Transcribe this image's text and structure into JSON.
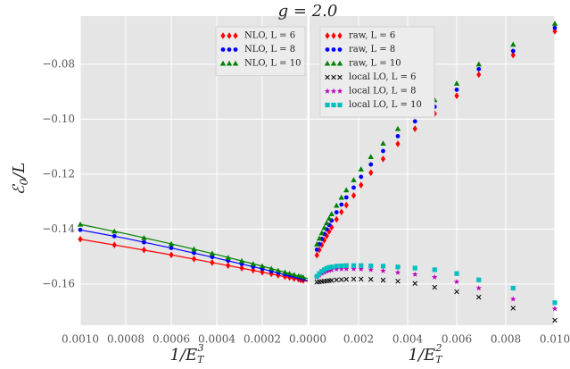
{
  "chart_data": [
    {
      "type": "scatter",
      "title": "g = 2.0",
      "y_label": {
        "base": "ℰ",
        "sub": "0",
        "rest": "/L"
      },
      "x_label": {
        "base": "1/E",
        "sub": "T",
        "sup": "3"
      },
      "xlim": [
        0.001,
        0
      ],
      "ylim": [
        -0.175,
        -0.0625
      ],
      "xticks": [
        {
          "value": 0.001,
          "label": "0.0010"
        },
        {
          "value": 0.0008,
          "label": "0.0008"
        },
        {
          "value": 0.0006,
          "label": "0.0006"
        },
        {
          "value": 0.0004,
          "label": "0.0004"
        },
        {
          "value": 0.0002,
          "label": "0.0002"
        },
        {
          "value": 0,
          "label": "0.0000"
        }
      ],
      "yticks": [
        {
          "value": -0.08,
          "label": "−0.08"
        },
        {
          "value": -0.1,
          "label": "−0.10"
        },
        {
          "value": -0.12,
          "label": "−0.12"
        },
        {
          "value": -0.14,
          "label": "−0.14"
        },
        {
          "value": -0.16,
          "label": "−0.16"
        }
      ],
      "grid": true,
      "legend": "upper right",
      "x": [
        0.001,
        0.00085,
        0.00072,
        0.0006,
        0.0005,
        0.00042,
        0.00035,
        0.00029,
        0.00024,
        0.0002,
        0.00016,
        0.00013,
        0.0001,
        8e-05,
        6e-05,
        4e-05,
        3e-05,
        2e-05
      ],
      "series": [
        {
          "name": "NLO, L = 6",
          "color": "#ff0000",
          "marker": "diamond",
          "values": [
            -0.1437,
            -0.1458,
            -0.1476,
            -0.1494,
            -0.1509,
            -0.1522,
            -0.1533,
            -0.1542,
            -0.155,
            -0.1557,
            -0.1563,
            -0.1568,
            -0.1573,
            -0.1576,
            -0.158,
            -0.1583,
            -0.1585,
            -0.1587
          ]
        },
        {
          "name": "NLO, L = 8",
          "color": "#0000ff",
          "marker": "circle",
          "values": [
            -0.1403,
            -0.1426,
            -0.1448,
            -0.1469,
            -0.1487,
            -0.1502,
            -0.1515,
            -0.1527,
            -0.1537,
            -0.1545,
            -0.1554,
            -0.156,
            -0.1566,
            -0.1571,
            -0.1575,
            -0.1579,
            -0.1581,
            -0.1584
          ]
        },
        {
          "name": "NLO, L = 10",
          "color": "#008000",
          "marker": "triangle",
          "values": [
            -0.1383,
            -0.1408,
            -0.1432,
            -0.1454,
            -0.1473,
            -0.1489,
            -0.1504,
            -0.1516,
            -0.1527,
            -0.1535,
            -0.1544,
            -0.1551,
            -0.1557,
            -0.1562,
            -0.1566,
            -0.1571,
            -0.1573,
            -0.1575
          ]
        },
        {
          "color": "#ff0000",
          "line": true,
          "x": [
            0.001,
            0.0008,
            0.0006,
            0.0004,
            0.0002,
            0
          ],
          "values": [
            -0.1437,
            -0.1465,
            -0.1494,
            -0.1525,
            -0.1557,
            -0.159
          ]
        },
        {
          "color": "#0000ff",
          "line": true,
          "x": [
            0.001,
            0.0008,
            0.0006,
            0.0004,
            0.0002,
            0
          ],
          "values": [
            -0.1403,
            -0.1434,
            -0.1469,
            -0.1506,
            -0.1545,
            -0.1588
          ]
        },
        {
          "color": "#008000",
          "line": true,
          "x": [
            0.001,
            0.0008,
            0.0006,
            0.0004,
            0.0002,
            0
          ],
          "values": [
            -0.1383,
            -0.1417,
            -0.1454,
            -0.1493,
            -0.1535,
            -0.158
          ]
        }
      ]
    },
    {
      "type": "scatter",
      "x_label": {
        "base": "1/E",
        "sub": "T",
        "sup": "2"
      },
      "xlim": [
        0,
        0.01
      ],
      "xticks": [
        0.002,
        0.004,
        0.006,
        0.008,
        {
          "value": 0.01,
          "label": "0.010"
        }
      ],
      "grid": true,
      "legend": "upper left",
      "x": [
        0.0003,
        0.0004,
        0.0005,
        0.0006,
        0.0007,
        0.0008,
        0.0009,
        0.0011,
        0.0013,
        0.0015,
        0.0018,
        0.0021,
        0.0025,
        0.003,
        0.0036,
        0.0043,
        0.0051,
        0.006,
        0.0069,
        0.0083,
        0.01
      ],
      "series": [
        {
          "name": "raw, L = 6",
          "color": "#ff0000",
          "marker": "diamond",
          "values": [
            -0.1495,
            -0.1476,
            -0.1458,
            -0.1441,
            -0.1425,
            -0.1409,
            -0.1394,
            -0.1365,
            -0.1338,
            -0.1313,
            -0.1278,
            -0.124,
            -0.1195,
            -0.1145,
            -0.109,
            -0.1035,
            -0.098,
            -0.0915,
            -0.0838,
            -0.0767,
            -0.068
          ]
        },
        {
          "name": "raw, L = 8",
          "color": "#0000ff",
          "marker": "circle",
          "values": [
            -0.1475,
            -0.1455,
            -0.1436,
            -0.1418,
            -0.1401,
            -0.1385,
            -0.1369,
            -0.1339,
            -0.1311,
            -0.1285,
            -0.1249,
            -0.121,
            -0.1165,
            -0.1116,
            -0.1062,
            -0.1008,
            -0.0955,
            -0.0893,
            -0.0818,
            -0.0752,
            -0.0668
          ]
        },
        {
          "name": "raw, L = 10",
          "color": "#008000",
          "marker": "triangle",
          "values": [
            -0.1455,
            -0.1434,
            -0.1414,
            -0.1395,
            -0.1378,
            -0.1361,
            -0.1345,
            -0.1314,
            -0.1285,
            -0.1258,
            -0.1221,
            -0.1182,
            -0.1137,
            -0.1088,
            -0.1035,
            -0.0982,
            -0.093,
            -0.087,
            -0.08,
            -0.0728,
            -0.0652
          ]
        },
        {
          "name": "local LO, L = 6",
          "color": "#000000",
          "marker": "x",
          "values": [
            -0.1593,
            -0.1592,
            -0.1591,
            -0.159,
            -0.1589,
            -0.1588,
            -0.1587,
            -0.1585,
            -0.1584,
            -0.1583,
            -0.1582,
            -0.1582,
            -0.1583,
            -0.1586,
            -0.159,
            -0.1598,
            -0.1612,
            -0.1628,
            -0.1648,
            -0.1688,
            -0.1732
          ]
        },
        {
          "name": "local LO, L = 8",
          "color": "#bf00bf",
          "marker": "star",
          "values": [
            -0.1575,
            -0.1568,
            -0.1562,
            -0.1558,
            -0.1554,
            -0.1551,
            -0.1549,
            -0.1546,
            -0.1545,
            -0.1545,
            -0.1545,
            -0.1546,
            -0.1548,
            -0.1552,
            -0.1558,
            -0.1565,
            -0.1575,
            -0.1592,
            -0.1615,
            -0.1655,
            -0.169
          ]
        },
        {
          "name": "local LO, L = 10",
          "color": "#00bfbf",
          "marker": "square",
          "values": [
            -0.1572,
            -0.1562,
            -0.1554,
            -0.1548,
            -0.1543,
            -0.154,
            -0.1538,
            -0.1535,
            -0.1534,
            -0.1533,
            -0.1533,
            -0.1533,
            -0.1534,
            -0.1535,
            -0.1538,
            -0.1542,
            -0.1548,
            -0.1562,
            -0.1585,
            -0.1615,
            -0.1668
          ]
        }
      ]
    }
  ]
}
